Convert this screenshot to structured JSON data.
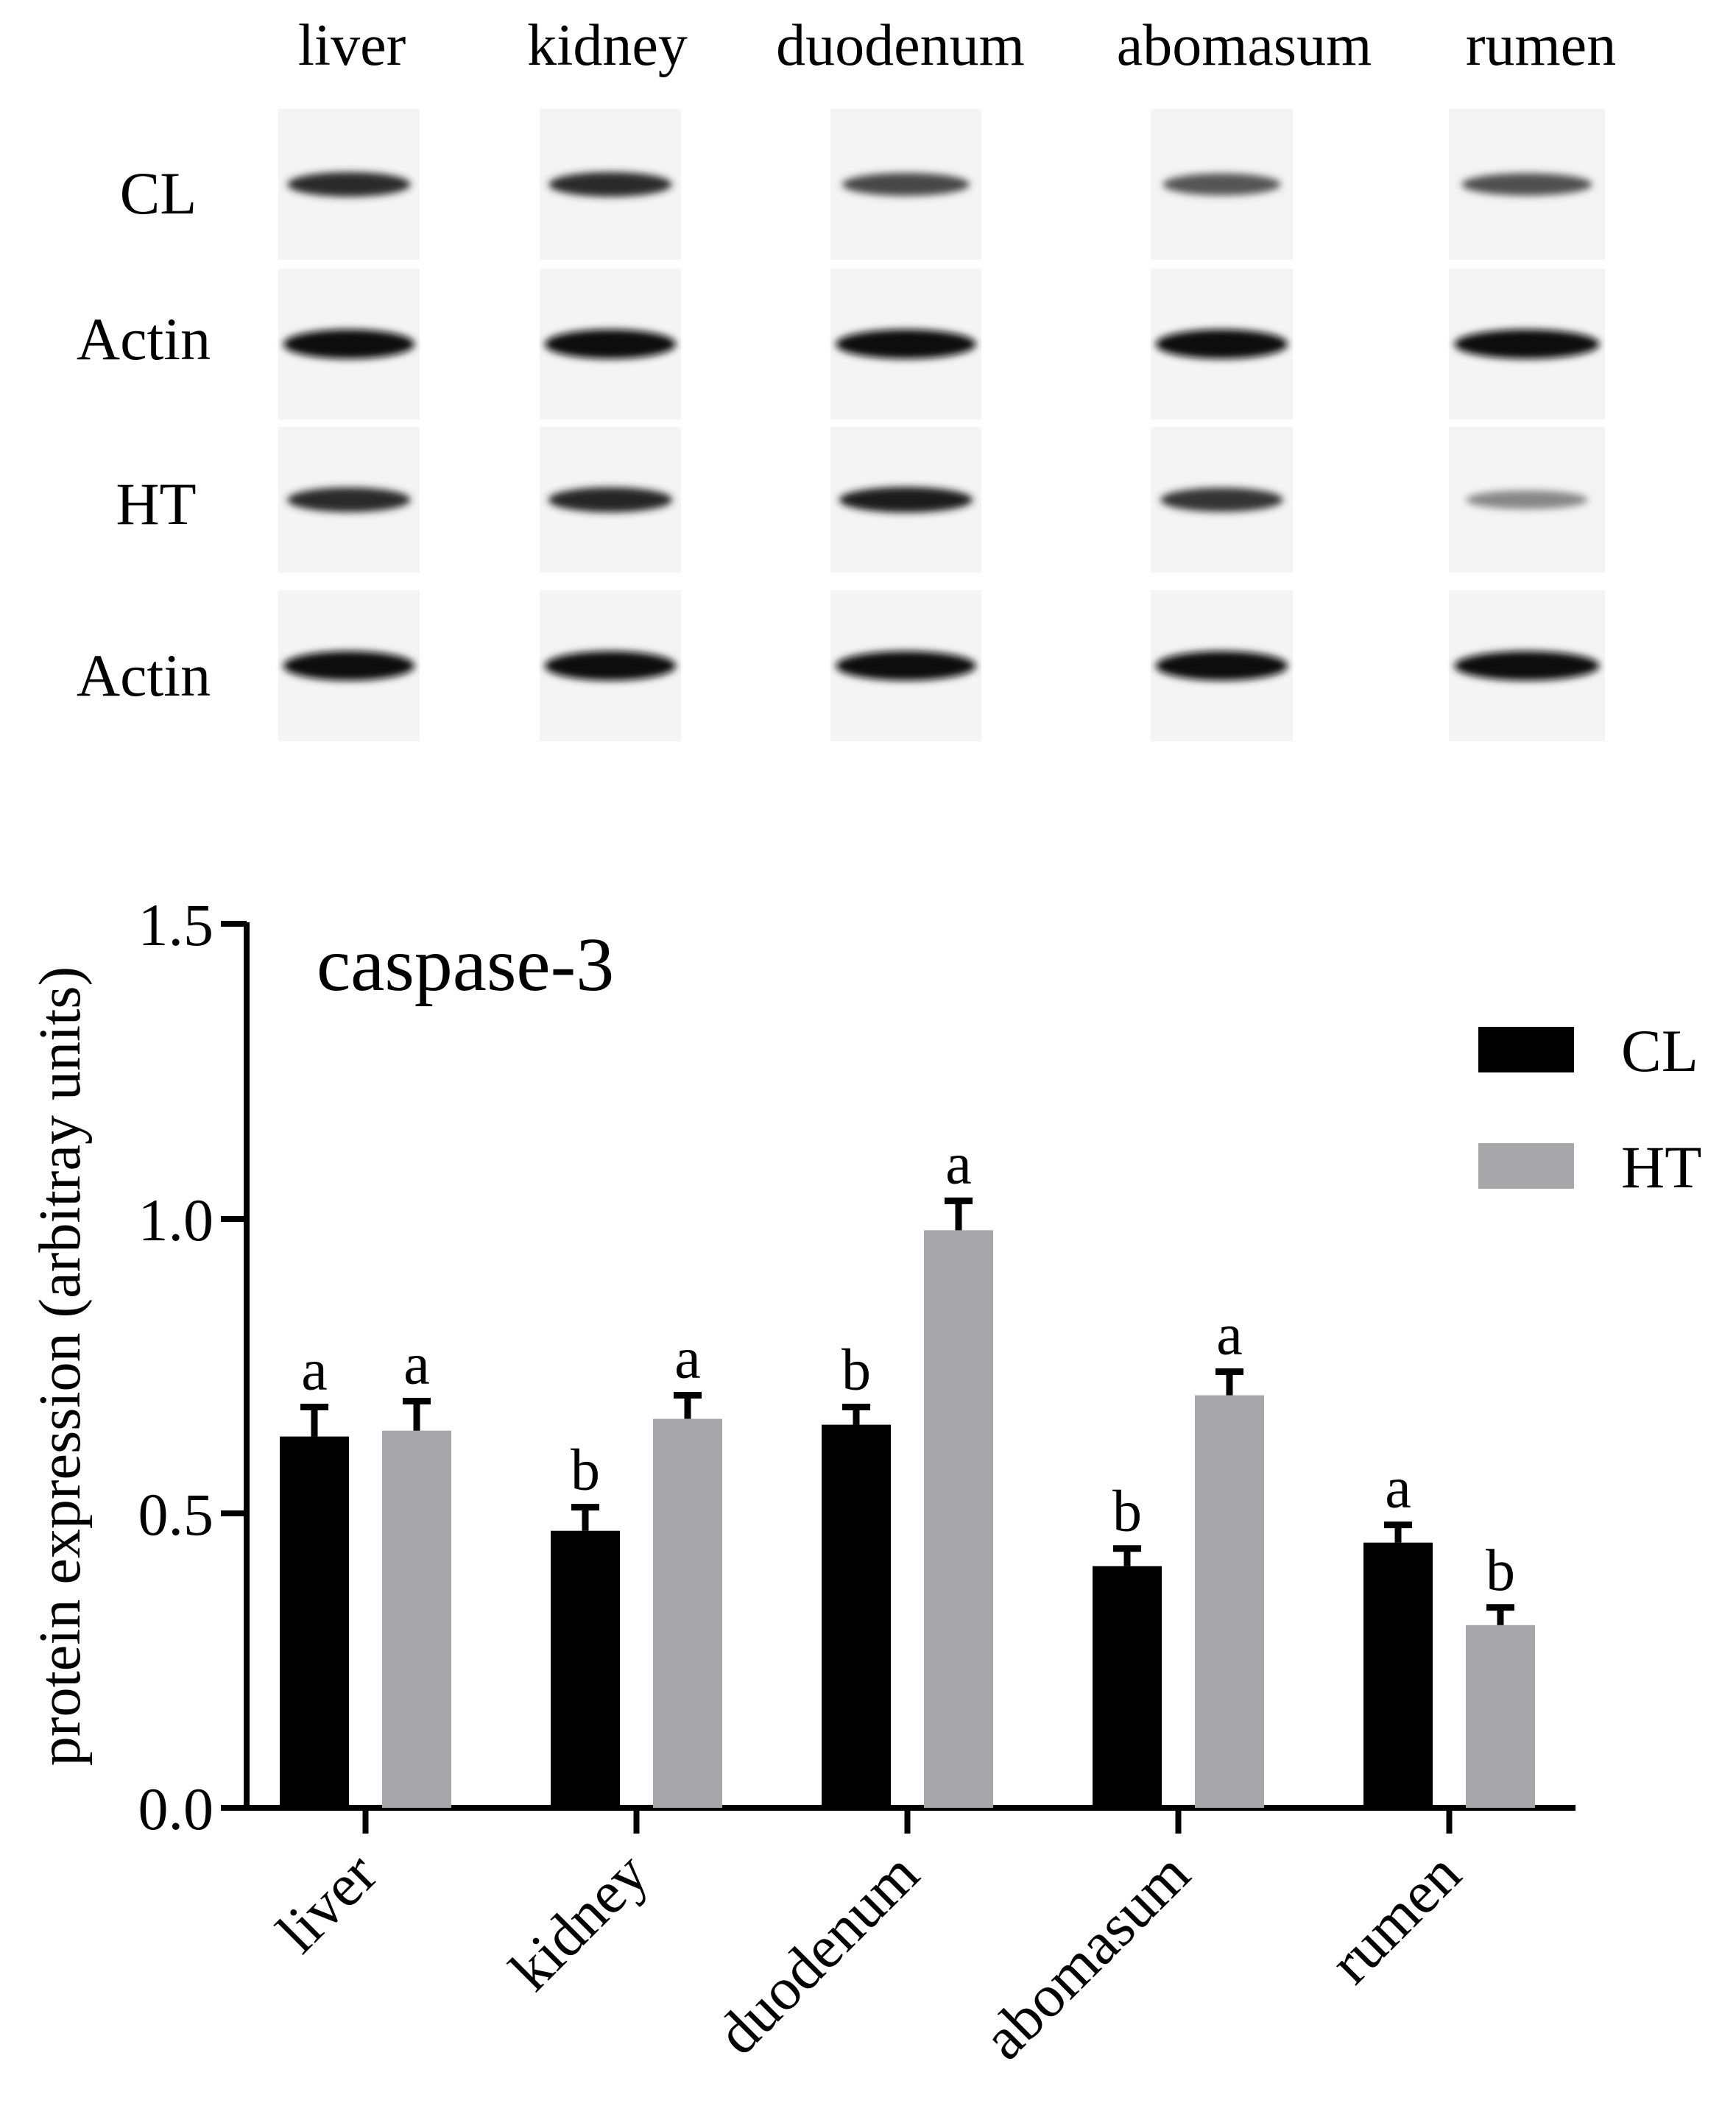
{
  "blot": {
    "tissues": [
      "liver",
      "kidney",
      "duodenum",
      "abomasum",
      "rumen"
    ],
    "rows": [
      {
        "label": "CL",
        "bands": [
          0.85,
          0.85,
          0.7,
          0.62,
          0.65
        ]
      },
      {
        "label": "Actin",
        "bands": [
          1.0,
          1.0,
          1.0,
          1.0,
          1.0
        ]
      },
      {
        "label": "HT",
        "bands": [
          0.85,
          0.88,
          0.92,
          0.8,
          0.35
        ]
      },
      {
        "label": "Actin",
        "bands": [
          1.0,
          1.0,
          1.0,
          1.0,
          1.0
        ]
      }
    ]
  },
  "chart_data": {
    "type": "bar",
    "title": "caspase-3",
    "ylabel": "protein expression (arbitray units)",
    "xlabel": "",
    "ylim": [
      0,
      1.5
    ],
    "yticks": [
      "0.0",
      "0.5",
      "1.0",
      "1.5"
    ],
    "categories": [
      "liver",
      "kidney",
      "duodenum",
      "abomasum",
      "rumen"
    ],
    "legend_position": "top-right",
    "series": [
      {
        "name": "CL",
        "color": "#000000",
        "values": [
          0.63,
          0.47,
          0.65,
          0.41,
          0.45
        ],
        "errors": [
          0.05,
          0.04,
          0.03,
          0.03,
          0.03
        ],
        "letters": [
          "a",
          "b",
          "b",
          "b",
          "a"
        ]
      },
      {
        "name": "HT",
        "color": "#a7a7aa",
        "values": [
          0.64,
          0.66,
          0.98,
          0.7,
          0.31
        ],
        "errors": [
          0.05,
          0.04,
          0.05,
          0.04,
          0.03
        ],
        "letters": [
          "a",
          "a",
          "a",
          "a",
          "b"
        ]
      }
    ]
  }
}
